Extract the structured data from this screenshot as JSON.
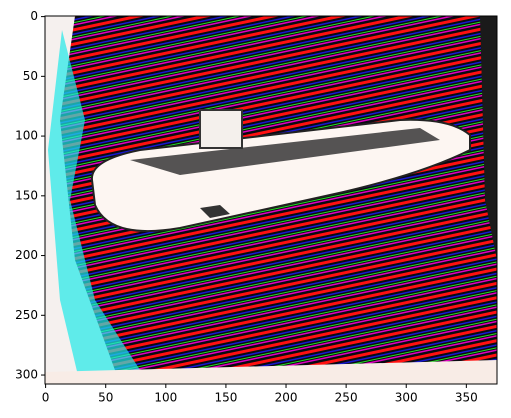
{
  "chart_data": {
    "type": "image",
    "xlim": [
      -0.5,
      375.5
    ],
    "ylim": [
      307.5,
      -0.5
    ],
    "xticks": [
      0,
      50,
      100,
      150,
      200,
      250,
      300,
      350
    ],
    "yticks": [
      0,
      50,
      100,
      150,
      200,
      250,
      300
    ]
  }
}
